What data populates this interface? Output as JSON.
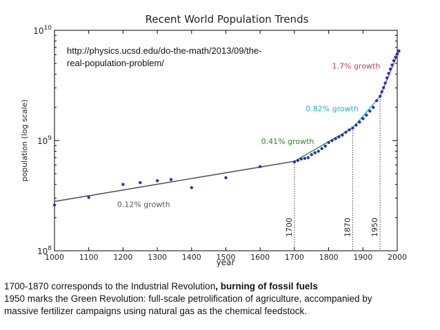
{
  "chart_data": {
    "type": "scatter",
    "title": "Recent World Population Trends",
    "xlabel": "year",
    "ylabel": "population (log scale)",
    "yscale": "log",
    "xlim": [
      1000,
      2000
    ],
    "ylim": [
      100000000,
      10000000000
    ],
    "x_ticks": [
      "1000",
      "1100",
      "1200",
      "1300",
      "1400",
      "1500",
      "1600",
      "1700",
      "1800",
      "1900",
      "2000"
    ],
    "y_ticks": [
      {
        "base": "10",
        "exp": "8",
        "value": 100000000
      },
      {
        "base": "10",
        "exp": "9",
        "value": 1000000000
      },
      {
        "base": "10",
        "exp": "10",
        "value": 10000000000
      }
    ],
    "points": [
      {
        "x": 1000,
        "y": 260000000
      },
      {
        "x": 1100,
        "y": 305000000
      },
      {
        "x": 1200,
        "y": 400000000
      },
      {
        "x": 1250,
        "y": 415000000
      },
      {
        "x": 1300,
        "y": 432000000
      },
      {
        "x": 1340,
        "y": 443000000
      },
      {
        "x": 1400,
        "y": 374000000
      },
      {
        "x": 1500,
        "y": 460000000
      },
      {
        "x": 1600,
        "y": 580000000
      },
      {
        "x": 1700,
        "y": 640000000
      },
      {
        "x": 1710,
        "y": 660000000
      },
      {
        "x": 1720,
        "y": 680000000
      },
      {
        "x": 1730,
        "y": 690000000
      },
      {
        "x": 1740,
        "y": 700000000
      },
      {
        "x": 1750,
        "y": 745000000
      },
      {
        "x": 1760,
        "y": 775000000
      },
      {
        "x": 1770,
        "y": 800000000
      },
      {
        "x": 1780,
        "y": 845000000
      },
      {
        "x": 1790,
        "y": 890000000
      },
      {
        "x": 1800,
        "y": 960000000
      },
      {
        "x": 1810,
        "y": 1000000000
      },
      {
        "x": 1820,
        "y": 1040000000
      },
      {
        "x": 1830,
        "y": 1080000000
      },
      {
        "x": 1840,
        "y": 1120000000
      },
      {
        "x": 1850,
        "y": 1190000000
      },
      {
        "x": 1860,
        "y": 1250000000
      },
      {
        "x": 1870,
        "y": 1300000000
      },
      {
        "x": 1880,
        "y": 1380000000
      },
      {
        "x": 1890,
        "y": 1470000000
      },
      {
        "x": 1900,
        "y": 1580000000
      },
      {
        "x": 1910,
        "y": 1700000000
      },
      {
        "x": 1920,
        "y": 1850000000
      },
      {
        "x": 1930,
        "y": 2000000000
      },
      {
        "x": 1940,
        "y": 2300000000
      },
      {
        "x": 1950,
        "y": 2520000000
      },
      {
        "x": 1955,
        "y": 2770000000
      },
      {
        "x": 1960,
        "y": 3020000000
      },
      {
        "x": 1965,
        "y": 3330000000
      },
      {
        "x": 1970,
        "y": 3700000000
      },
      {
        "x": 1975,
        "y": 4070000000
      },
      {
        "x": 1980,
        "y": 4450000000
      },
      {
        "x": 1985,
        "y": 4850000000
      },
      {
        "x": 1990,
        "y": 5300000000
      },
      {
        "x": 1995,
        "y": 5700000000
      },
      {
        "x": 2000,
        "y": 6100000000
      },
      {
        "x": 2005,
        "y": 6500000000
      }
    ],
    "fits": [
      {
        "label": "0.12% growth",
        "x": [
          1000,
          1700
        ],
        "y": [
          280000000,
          648000000
        ],
        "color": "#555555"
      },
      {
        "label": "0.41% growth",
        "x": [
          1700,
          1870
        ],
        "y": [
          648000000,
          1305000000
        ],
        "color": "#2e8b22"
      },
      {
        "label": "0.82% growth",
        "x": [
          1870,
          1950
        ],
        "y": [
          1305000000,
          2520000000
        ],
        "color": "#22b3c7"
      },
      {
        "label": "1.7% growth",
        "x": [
          1950,
          2005
        ],
        "y": [
          2520000000,
          6500000000
        ],
        "color": "#d8354c"
      }
    ],
    "vlines": [
      {
        "x": 1700,
        "label": "1700"
      },
      {
        "x": 1870,
        "label": "1870"
      },
      {
        "x": 1950,
        "label": "1950"
      }
    ],
    "point_color": "#2233cc"
  },
  "annotations": {
    "url_line1": "http://physics.ucsd.edu/do-the-math/2013/09/the-",
    "url_line2": "real-population-problem/"
  },
  "captions": {
    "line1_normal": "1700-1870 corresponds to the Industrial Revolution",
    "line1_bold": ", burning of fossil fuels",
    "line2": "1950 marks the Green Revolution: full-scale petrolification of agriculture, accompanied by",
    "line3": "massive fertilizer campaigns using natural gas as the chemical feedstock."
  }
}
